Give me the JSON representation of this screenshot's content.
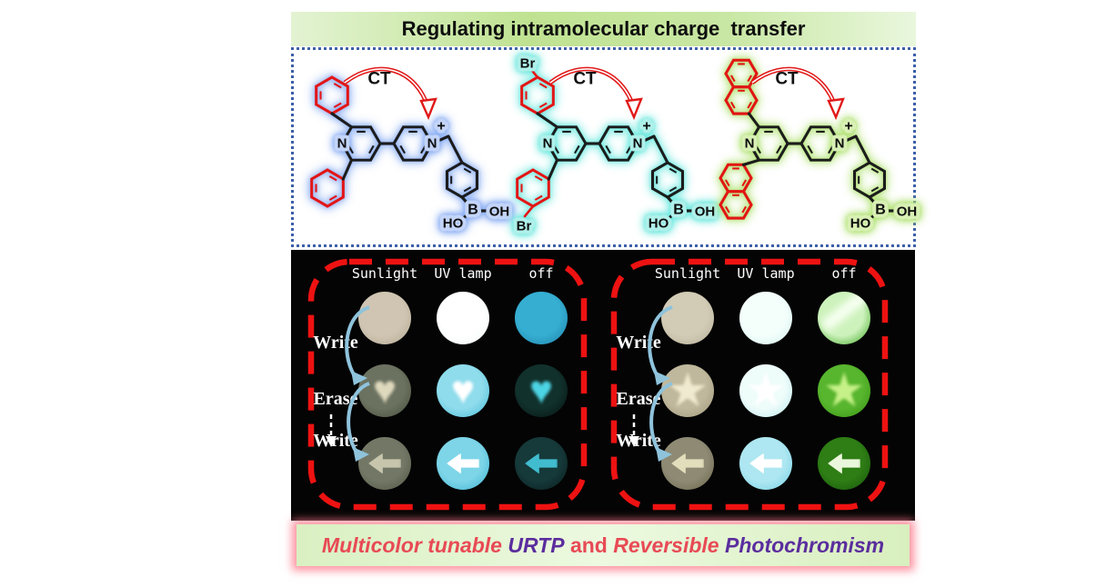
{
  "banner": {
    "title": "Regulating intramolecular charge  transfer"
  },
  "structures": [
    {
      "name": "diphenyl-bipyridinium-boronic-acid",
      "glow_color": "#7fa6f2",
      "labels": {
        "ct": "CT",
        "n": "N",
        "n_plus": "N",
        "plus": "+",
        "b": "B",
        "ho": "HO",
        "oh": "OH"
      }
    },
    {
      "name": "bis-bromophenyl-bipyridinium-boronic-acid",
      "glow_color": "#5fe6dc",
      "labels": {
        "ct": "CT",
        "n": "N",
        "n_plus": "N",
        "plus": "+",
        "b": "B",
        "ho": "HO",
        "oh": "OH",
        "br_top": "Br",
        "br_bottom": "Br"
      }
    },
    {
      "name": "dinaphthyl-bipyridinium-boronic-acid",
      "glow_color": "#abe06a",
      "labels": {
        "ct": "CT",
        "n": "N",
        "n_plus": "N",
        "plus": "+",
        "b": "B",
        "ho": "HO",
        "oh": "OH"
      }
    }
  ],
  "panels": [
    {
      "columns": [
        "Sunlight",
        "UV lamp",
        "off"
      ],
      "row_labels": [
        "Write",
        "Erase",
        "Write"
      ],
      "cells": [
        {
          "fill": "#cfc5b2",
          "rim": "#b3a892",
          "shape": "none",
          "shape_color": ""
        },
        {
          "fill": "#ffffff",
          "rim": "#f0faf8",
          "shape": "none",
          "shape_color": ""
        },
        {
          "fill": "#35aed2",
          "rim": "#1f7fa6",
          "shape": "none",
          "shape_color": ""
        },
        {
          "fill": "#6b7260",
          "rim": "#454c39",
          "shape": "heart",
          "shape_color": "#ded8bd"
        },
        {
          "fill": "#8fdcec",
          "rim": "#44bcd8",
          "shape": "heart",
          "shape_color": "#ffffff"
        },
        {
          "fill": "#11312c",
          "rim": "#06100e",
          "shape": "heart",
          "shape_color": "#4cd4e4"
        },
        {
          "fill": "#737866",
          "rim": "#4e5442",
          "shape": "arrow",
          "shape_color": "#c7c6ad"
        },
        {
          "fill": "#7ed5e8",
          "rim": "#39b2d2",
          "shape": "arrow",
          "shape_color": "#ffffff"
        },
        {
          "fill": "#16393a",
          "rim": "#081b1a",
          "shape": "arrow",
          "shape_color": "#41bccf"
        }
      ]
    },
    {
      "columns": [
        "Sunlight",
        "UV lamp",
        "off"
      ],
      "row_labels": [
        "Write",
        "Erase",
        "Write"
      ],
      "cells": [
        {
          "fill": "#d2cbb6",
          "rim": "#b5ae96",
          "shape": "none",
          "shape_color": ""
        },
        {
          "fill": "#f4fffc",
          "rim": "#d0f2ec",
          "shape": "none",
          "shape_color": ""
        },
        {
          "fill": "#cdf2bc",
          "rim": "#2fa214",
          "shape": "band",
          "shape_color": "#f6fff0"
        },
        {
          "fill": "#c0b89c",
          "rim": "#9f9679",
          "shape": "star",
          "shape_color": "#f0ead0"
        },
        {
          "fill": "#eefcfa",
          "rim": "#b9ebf0",
          "shape": "star",
          "shape_color": "#ffffff"
        },
        {
          "fill": "#58b52e",
          "rim": "#35920f",
          "shape": "star",
          "shape_color": "#c6f188"
        },
        {
          "fill": "#8e8a74",
          "rim": "#686448",
          "shape": "arrow",
          "shape_color": "#e2debc"
        },
        {
          "fill": "#aee7f1",
          "rim": "#72cfe4",
          "shape": "arrow",
          "shape_color": "#ffffff"
        },
        {
          "fill": "#2e7d15",
          "rim": "#16520a",
          "shape": "arrow",
          "shape_color": "#ebf7dc"
        }
      ]
    }
  ],
  "footer": {
    "segments": [
      {
        "text": "Multicolor tunable ",
        "color": "#e84a55",
        "italic": true
      },
      {
        "text": "URTP",
        "color": "#5b2d9e",
        "italic": true
      },
      {
        "text": " and ",
        "color": "#e84a55",
        "italic": false
      },
      {
        "text": "Reversible",
        "color": "#e84a55",
        "italic": true
      },
      {
        "text": " ",
        "color": "#e84a55",
        "italic": false
      },
      {
        "text": "Photochromism",
        "color": "#5b2d9e",
        "italic": true
      }
    ]
  }
}
